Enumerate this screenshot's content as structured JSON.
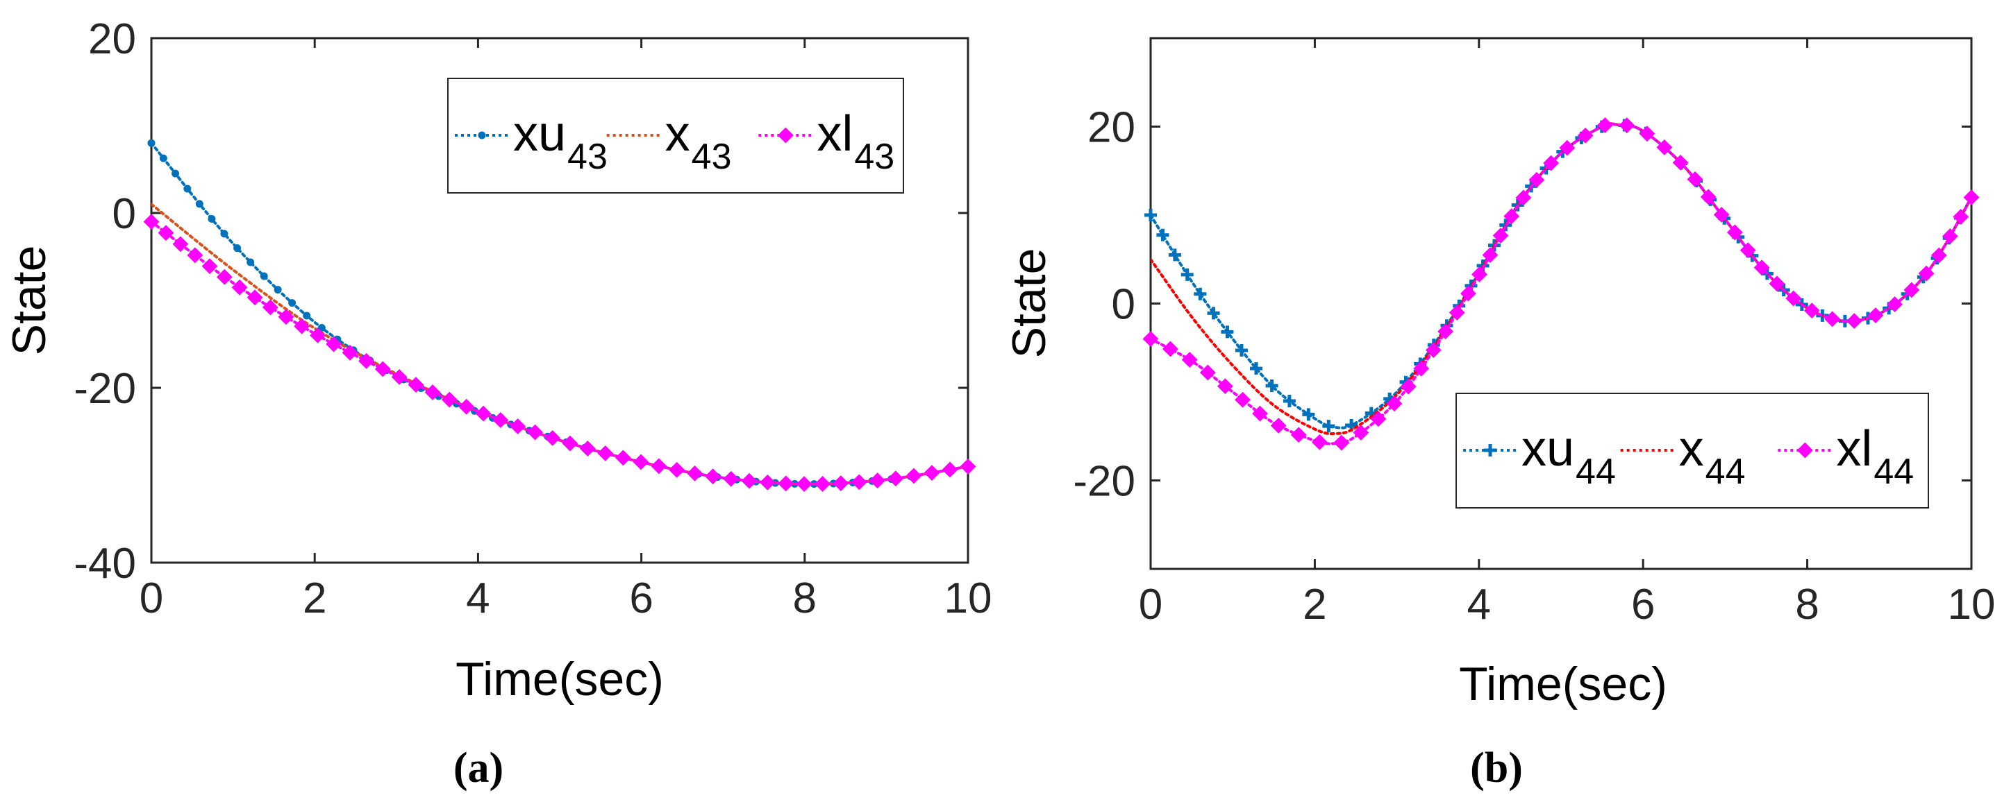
{
  "chart_data": [
    {
      "type": "line",
      "caption": "(a)",
      "xlabel": "Time(sec)",
      "ylabel": "State",
      "xlim": [
        0,
        10
      ],
      "ylim": [
        -40,
        20
      ],
      "xticks": [
        "0",
        "2",
        "4",
        "6",
        "8",
        "10"
      ],
      "yticks": [
        "-40",
        "-20",
        "0",
        "20"
      ],
      "xtick_values": [
        0,
        2,
        4,
        6,
        8,
        10
      ],
      "ytick_values": [
        -40,
        -20,
        0,
        20
      ],
      "legend_position": "top-right",
      "x": [
        0,
        1,
        2,
        3,
        4,
        5,
        6,
        7,
        8,
        9,
        10
      ],
      "series": [
        {
          "name": "xu",
          "subscript": "43",
          "color": "#0072BD",
          "marker": "dot",
          "values": [
            8.0,
            -3.5,
            -12.5,
            -18.6,
            -22.8,
            -26.0,
            -28.5,
            -30.3,
            -31.0,
            -30.5,
            -29.0
          ]
        },
        {
          "name": "x",
          "subscript": "43",
          "color": "#D95319",
          "marker": "none",
          "values": [
            1.0,
            -6.5,
            -13.2,
            -18.4,
            -22.7,
            -26.0,
            -28.5,
            -30.3,
            -31.0,
            -30.5,
            -29.0
          ]
        },
        {
          "name": "xl",
          "subscript": "43",
          "color": "#FF00FF",
          "marker": "diamond",
          "values": [
            -1.0,
            -8.0,
            -13.8,
            -18.6,
            -22.7,
            -26.0,
            -28.5,
            -30.3,
            -31.0,
            -30.5,
            -29.0
          ]
        }
      ]
    },
    {
      "type": "line",
      "caption": "(b)",
      "xlabel": "Time(sec)",
      "ylabel": "State",
      "xlim": [
        0,
        10
      ],
      "ylim": [
        -30,
        30
      ],
      "xticks": [
        "0",
        "2",
        "4",
        "6",
        "8",
        "10"
      ],
      "yticks": [
        "-20",
        "0",
        "20"
      ],
      "xtick_values": [
        0,
        2,
        4,
        6,
        8,
        10
      ],
      "ytick_values": [
        -20,
        0,
        20
      ],
      "legend_position": "lower-right",
      "x": [
        0,
        0.5,
        1,
        1.5,
        2,
        2.25,
        2.5,
        3,
        3.5,
        4,
        4.5,
        5,
        5.5,
        5.7,
        6,
        6.5,
        7,
        7.5,
        8,
        8.5,
        9,
        9.5,
        10
      ],
      "series": [
        {
          "name": "xu",
          "subscript": "44",
          "color": "#0072BD",
          "marker": "plus",
          "values": [
            10.0,
            2.5,
            -4.0,
            -9.5,
            -13.0,
            -14.0,
            -13.5,
            -10.0,
            -4.0,
            3.5,
            11.5,
            17.0,
            20.0,
            20.2,
            19.5,
            15.5,
            9.5,
            3.5,
            -0.5,
            -2.0,
            -0.5,
            4.0,
            12.0
          ]
        },
        {
          "name": "x",
          "subscript": "44",
          "color": "#FF0000",
          "marker": "none",
          "values": [
            5.0,
            -1.5,
            -7.0,
            -11.5,
            -14.2,
            -14.7,
            -14.0,
            -10.3,
            -4.2,
            3.4,
            11.5,
            17.0,
            20.0,
            20.2,
            19.5,
            15.5,
            9.5,
            3.5,
            -0.5,
            -2.0,
            -0.5,
            4.0,
            12.0
          ]
        },
        {
          "name": "xl",
          "subscript": "44",
          "color": "#FF00FF",
          "marker": "diamond",
          "values": [
            -4.0,
            -6.5,
            -10.0,
            -13.5,
            -15.5,
            -15.8,
            -15.0,
            -11.0,
            -4.5,
            3.2,
            11.4,
            17.0,
            20.0,
            20.2,
            19.5,
            15.5,
            9.5,
            3.5,
            -0.5,
            -2.0,
            -0.5,
            4.0,
            12.0
          ]
        }
      ]
    }
  ]
}
